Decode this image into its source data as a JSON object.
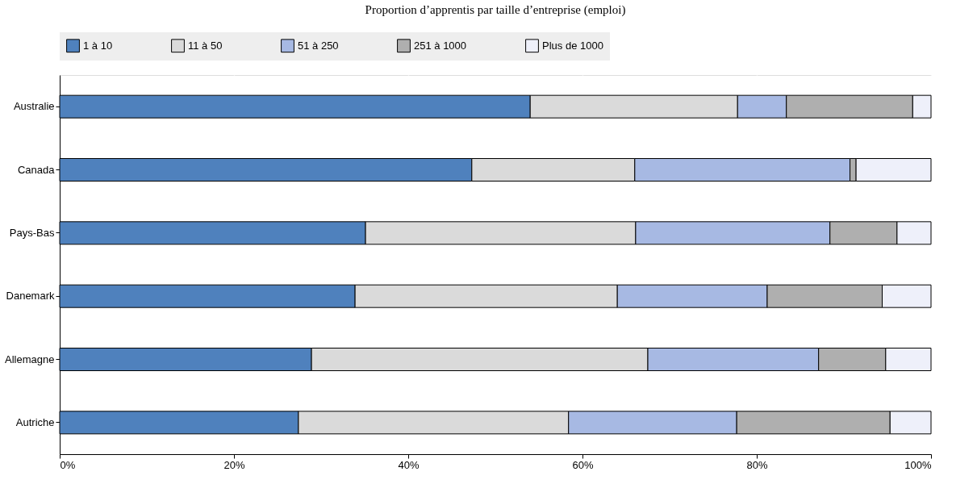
{
  "chart_data": {
    "type": "bar",
    "orientation": "horizontal",
    "stacked": true,
    "title": "Proportion d’apprentis par taille d’entreprise (emploi)",
    "categories": [
      "Australie",
      "Canada",
      "Pays-Bas",
      "Danemark",
      "Allemagne",
      "Autriche"
    ],
    "series": [
      {
        "name": "1 à 10",
        "color": "#4f81bd",
        "values": [
          54.0,
          47.3,
          35.1,
          33.9,
          28.9,
          27.4
        ]
      },
      {
        "name": "11 à 50",
        "color": "#dadada",
        "values": [
          23.8,
          18.7,
          31.0,
          30.1,
          38.6,
          31.0
        ]
      },
      {
        "name": "51 à 250",
        "color": "#a7b9e3",
        "values": [
          5.6,
          24.7,
          22.3,
          17.2,
          19.6,
          19.3
        ]
      },
      {
        "name": "251 à 1000",
        "color": "#afafaf",
        "values": [
          14.5,
          0.7,
          7.7,
          13.2,
          7.7,
          17.6
        ]
      },
      {
        "name": "Plus de 1000",
        "color": "#eef0fa",
        "values": [
          2.1,
          8.6,
          3.9,
          5.6,
          5.2,
          4.7
        ]
      }
    ],
    "xlim": [
      0,
      100
    ],
    "xticks": [
      {
        "value": 0,
        "label": "0%"
      },
      {
        "value": 20,
        "label": "20%"
      },
      {
        "value": 40,
        "label": "40%"
      },
      {
        "value": 60,
        "label": "60%"
      },
      {
        "value": 80,
        "label": "80%"
      },
      {
        "value": 100,
        "label": "100%"
      }
    ],
    "grid": "x",
    "legend": "top"
  }
}
